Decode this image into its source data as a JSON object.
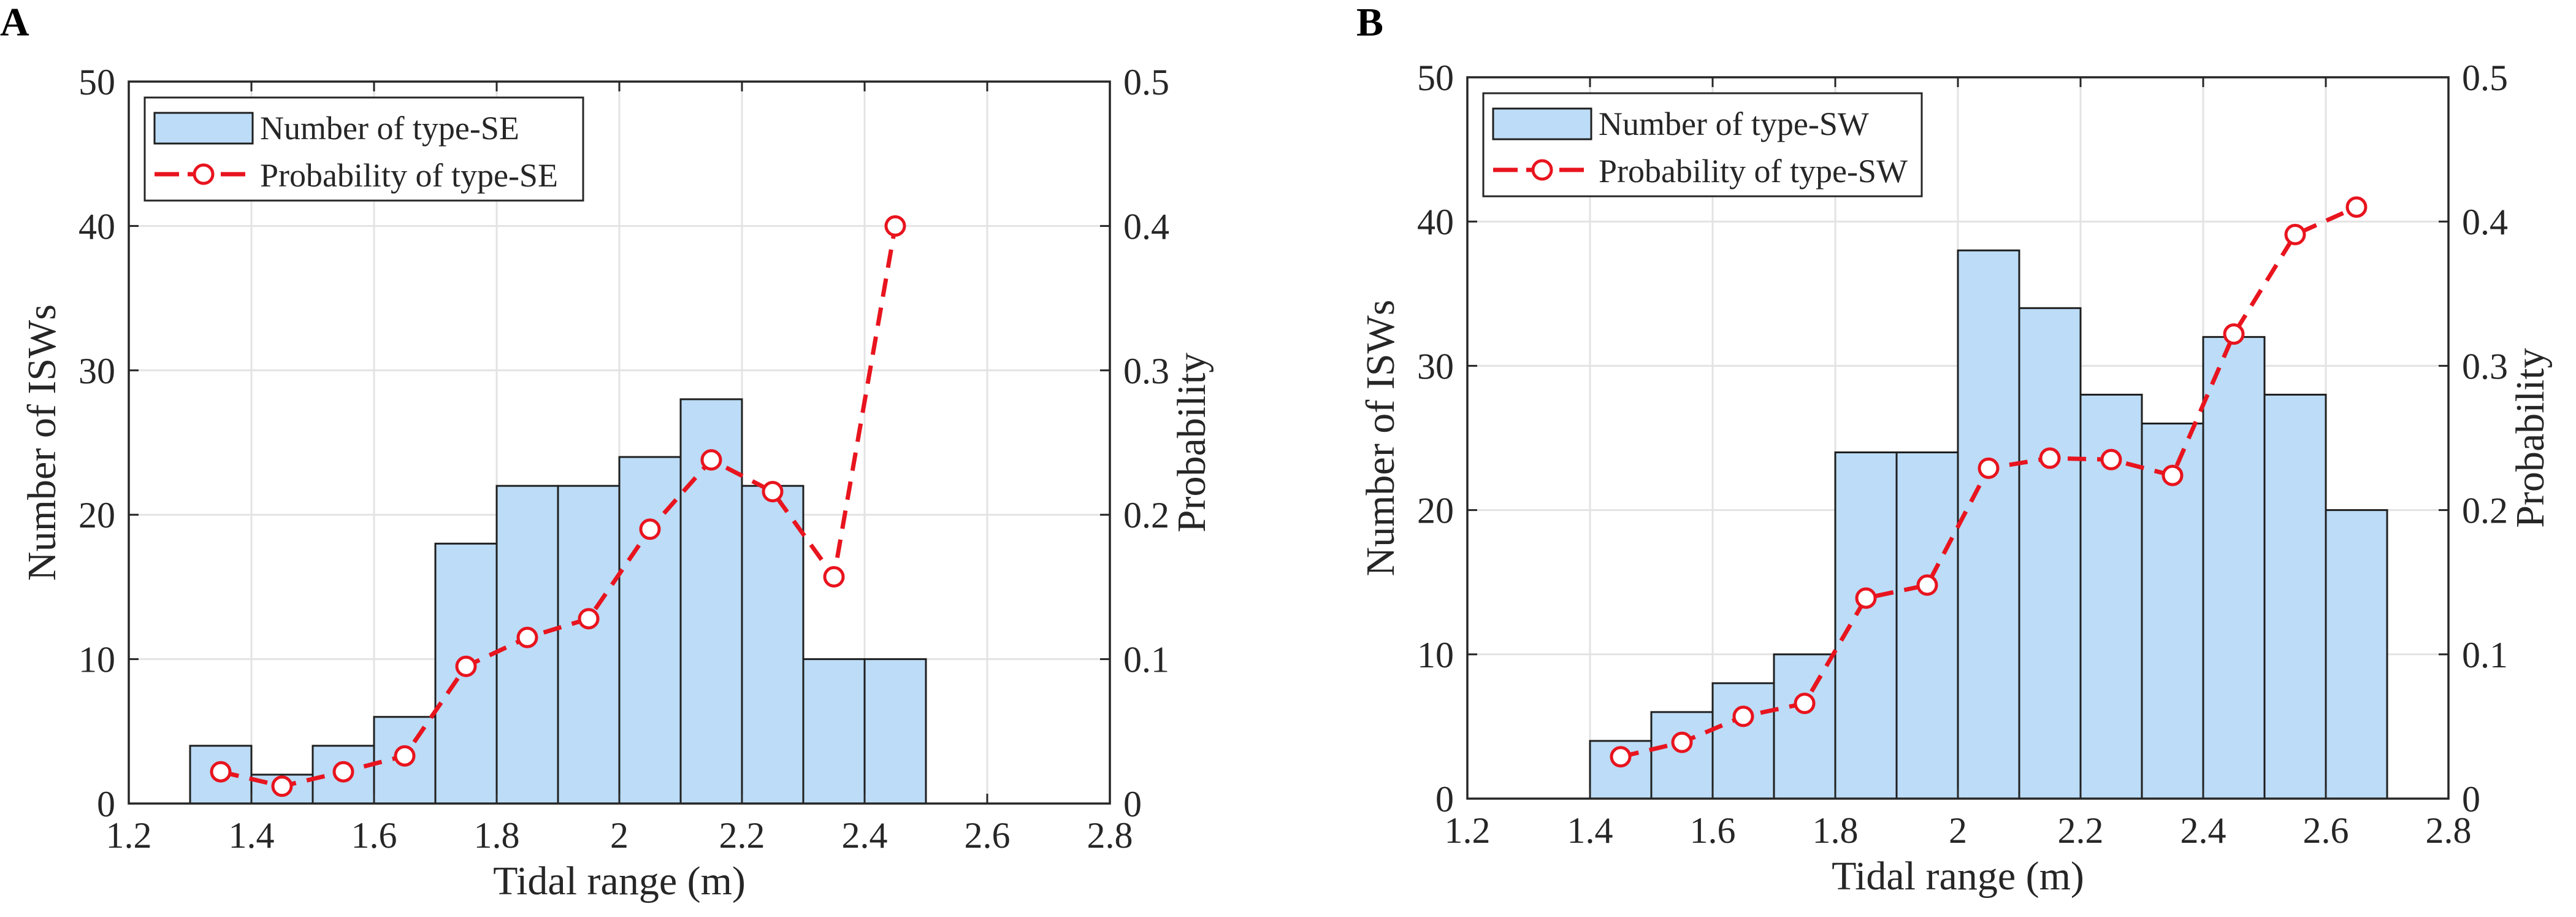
{
  "colors": {
    "bar_fill": "#bcdcf7",
    "bar_edge": "#1f1f1f",
    "line": "#e8141e",
    "grid": "#e3e3e3",
    "axis": "#262626"
  },
  "chart_data": [
    {
      "type": "bar",
      "panel_label": "A",
      "xlabel": "Tidal range (m)",
      "ylabel": "Number of ISWs",
      "y2label": "Probability",
      "xlim": [
        1.2,
        2.8
      ],
      "ylim": [
        0,
        50
      ],
      "y2lim": [
        0,
        0.5
      ],
      "xticks": [
        "1.2",
        "1.4",
        "1.6",
        "1.8",
        "2",
        "2.2",
        "2.4",
        "2.6",
        "2.8"
      ],
      "yticks": [
        "0",
        "10",
        "20",
        "30",
        "40",
        "50"
      ],
      "y2ticks": [
        "0",
        "0.1",
        "0.2",
        "0.3",
        "0.4",
        "0.5"
      ],
      "grid": true,
      "series": [
        {
          "name": "Number of type-SE",
          "kind": "histogram",
          "bin_width": 0.1,
          "bin_centers": [
            1.35,
            1.45,
            1.55,
            1.65,
            1.75,
            1.85,
            1.95,
            2.05,
            2.15,
            2.25,
            2.35,
            2.45
          ],
          "values": [
            4,
            2,
            4,
            6,
            18,
            22,
            22,
            24,
            28,
            22,
            10,
            10
          ]
        },
        {
          "name": "Probability of type-SE",
          "kind": "line",
          "axis": "right",
          "x": [
            1.35,
            1.45,
            1.55,
            1.65,
            1.75,
            1.85,
            1.95,
            2.05,
            2.15,
            2.25,
            2.35,
            2.45
          ],
          "values": [
            0.022,
            0.012,
            0.022,
            0.033,
            0.095,
            0.115,
            0.128,
            0.19,
            0.238,
            0.216,
            0.157,
            0.4
          ]
        }
      ],
      "legend": "top-left"
    },
    {
      "type": "bar",
      "panel_label": "B",
      "xlabel": "Tidal range (m)",
      "ylabel": "Number of ISWs",
      "y2label": "Probability",
      "xlim": [
        1.2,
        2.8
      ],
      "ylim": [
        0,
        50
      ],
      "y2lim": [
        0,
        0.5
      ],
      "xticks": [
        "1.2",
        "1.4",
        "1.6",
        "1.8",
        "2",
        "2.2",
        "2.4",
        "2.6",
        "2.8"
      ],
      "yticks": [
        "0",
        "10",
        "20",
        "30",
        "40",
        "50"
      ],
      "y2ticks": [
        "0",
        "0.1",
        "0.2",
        "0.3",
        "0.4",
        "0.5"
      ],
      "grid": true,
      "series": [
        {
          "name": "Number of type-SW",
          "kind": "histogram",
          "bin_width": 0.1,
          "bin_centers": [
            1.45,
            1.55,
            1.65,
            1.75,
            1.85,
            1.95,
            2.05,
            2.15,
            2.25,
            2.35,
            2.45,
            2.55,
            2.65
          ],
          "values": [
            4,
            6,
            8,
            10,
            24,
            24,
            38,
            34,
            28,
            26,
            32,
            28,
            20
          ]
        },
        {
          "name": "Probability of type-SW",
          "kind": "line",
          "axis": "right",
          "x": [
            1.45,
            1.55,
            1.65,
            1.75,
            1.85,
            1.95,
            2.05,
            2.15,
            2.25,
            2.35,
            2.45,
            2.55,
            2.65
          ],
          "values": [
            0.029,
            0.039,
            0.057,
            0.066,
            0.139,
            0.148,
            0.229,
            0.236,
            0.235,
            0.224,
            0.322,
            0.391,
            0.41
          ]
        }
      ],
      "legend": "top-left"
    }
  ]
}
